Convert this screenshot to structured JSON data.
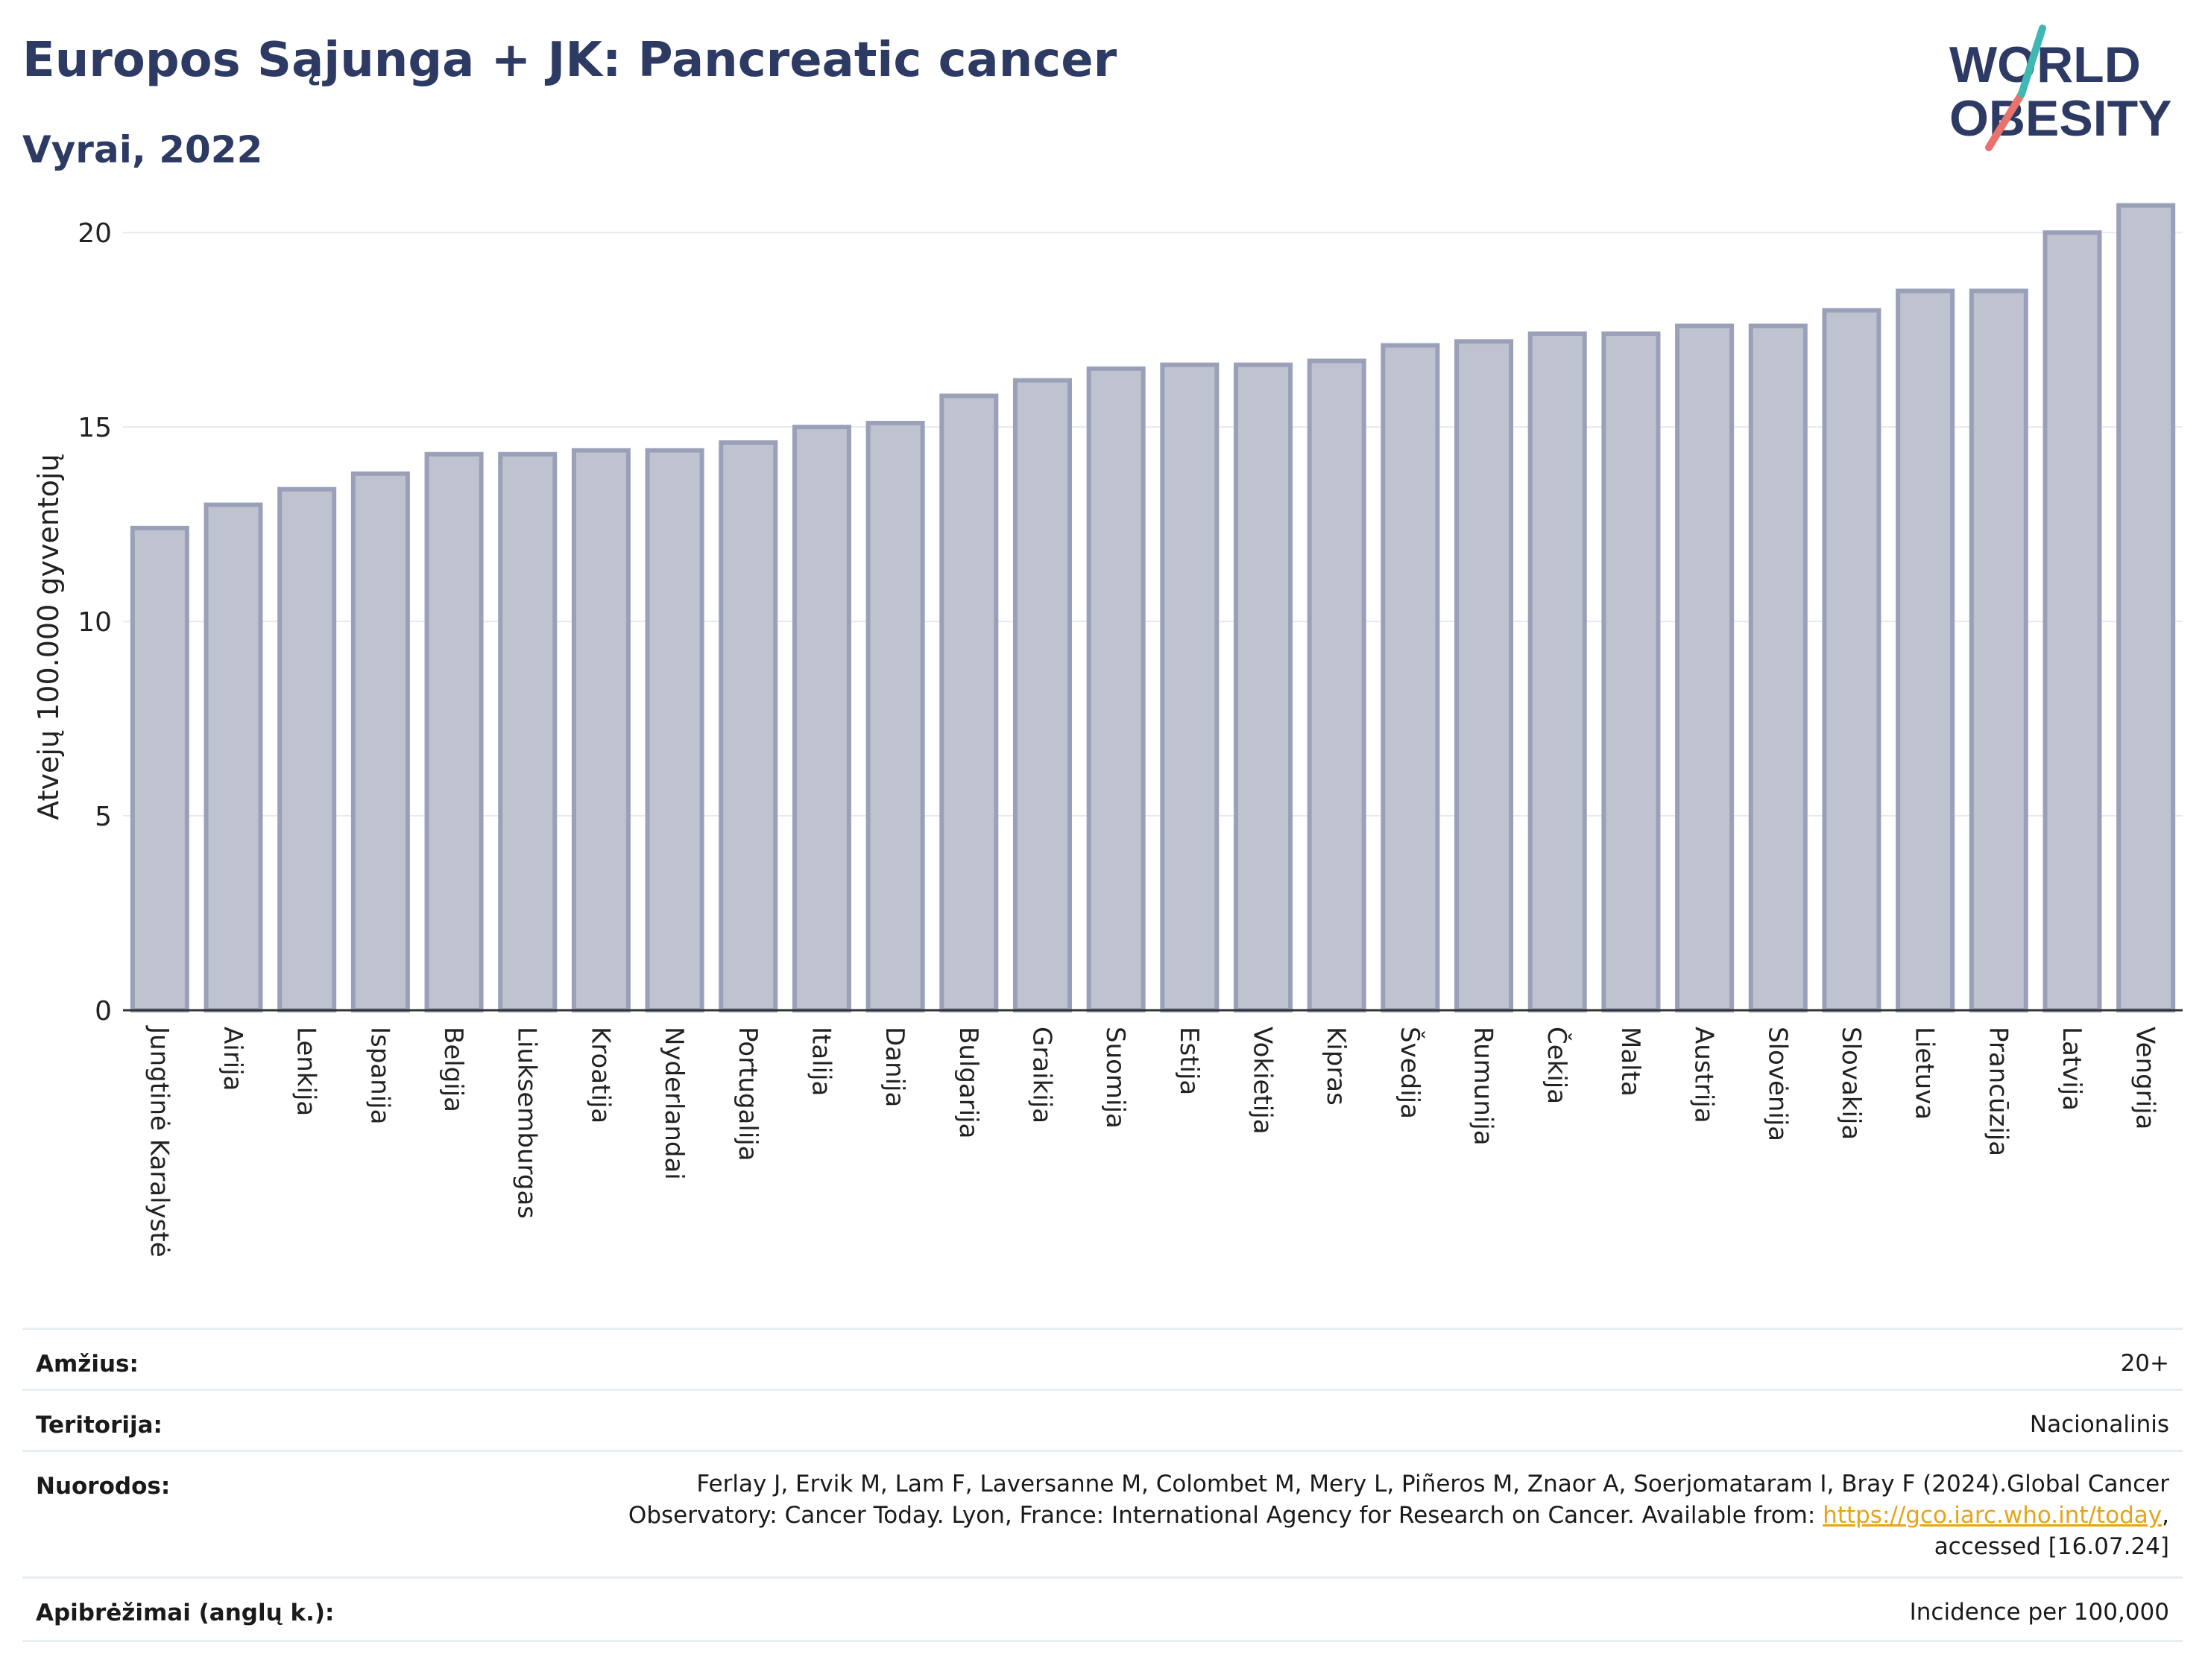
{
  "header": {
    "title": "Europos Sąjunga + JK: Pancreatic cancer",
    "subtitle": "Vyrai, 2022"
  },
  "logo": {
    "line1": "WORLD",
    "line2": "OBESITY",
    "accent": "#e8736c",
    "accent2": "#3fb8b4",
    "text_color": "#2d3a63"
  },
  "chart_data": {
    "type": "bar",
    "ylabel": "Atvejų 100.000 gyventojų",
    "ylim": [
      0,
      21
    ],
    "yticks": [
      0,
      5,
      10,
      15,
      20
    ],
    "grid": true,
    "categories": [
      "Jungtinė Karalystė",
      "Airija",
      "Lenkija",
      "Ispanija",
      "Belgija",
      "Liuksemburgas",
      "Kroatija",
      "Nyderlandai",
      "Portugalija",
      "Italija",
      "Danija",
      "Bulgarija",
      "Graikija",
      "Suomija",
      "Estija",
      "Vokietija",
      "Kipras",
      "Švedija",
      "Rumunija",
      "Čekija",
      "Malta",
      "Austrija",
      "Slovėnija",
      "Slovakija",
      "Lietuva",
      "Prancūzija",
      "Latvija",
      "Vengrija"
    ],
    "values": [
      12.4,
      13.0,
      13.4,
      13.8,
      14.3,
      14.3,
      14.4,
      14.4,
      14.6,
      15.0,
      15.1,
      15.8,
      16.2,
      16.5,
      16.6,
      16.6,
      16.7,
      17.1,
      17.2,
      17.4,
      17.4,
      17.6,
      17.6,
      18.0,
      18.5,
      18.5,
      20.0,
      20.7
    ],
    "bar_fill": "#bfc3d0",
    "bar_stroke": "#9aa0b8"
  },
  "meta": {
    "age_label": "Amžius:",
    "age_value": "20+",
    "territory_label": "Teritorija:",
    "territory_value": "Nacionalinis",
    "refs_label": "Nuorodos:",
    "refs_line1": "Ferlay J, Ervik M, Lam F, Laversanne M, Colombet M, Mery L, Piñeros M, Znaor A, Soerjomataram I, Bray F (2024).Global Cancer",
    "refs_line2_pre": "Observatory: Cancer Today. Lyon, France: International Agency for Research on Cancer. Available from: ",
    "refs_link": "https://gco.iarc.who.int/today",
    "refs_line2_post": ",",
    "refs_line3": "accessed [16.07.24]",
    "defs_label": "Apibrėžimai (anglų k.):",
    "defs_value": "Incidence per 100,000"
  }
}
